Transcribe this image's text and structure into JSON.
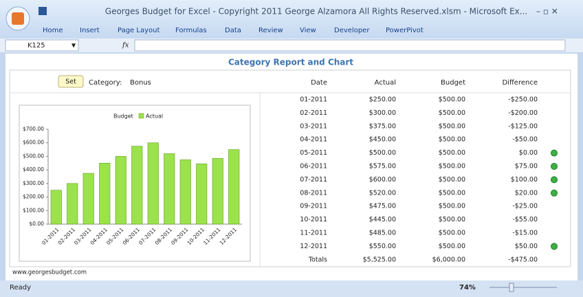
{
  "window": {
    "title": "Georges Budget for Excel - Copyright 2011 George Alzamora All Rights Reserved.xlsm - Microsoft Ex..."
  },
  "ribbon": {
    "tabs": [
      "Home",
      "Insert",
      "Page Layout",
      "Formulas",
      "Data",
      "Review",
      "View",
      "Developer",
      "PowerPivot"
    ]
  },
  "formula_bar": {
    "name_box": "K125",
    "fx": "fx"
  },
  "report": {
    "title": "Category Report and Chart",
    "button": "Set",
    "category_label": "Category:",
    "category": "Bonus",
    "columns": [
      "Date",
      "Actual",
      "Budget",
      "Difference"
    ],
    "rows": [
      {
        "date": "01-2011",
        "actual": "$250.00",
        "budget": "$500.00",
        "difference": "-$250.00",
        "indicator": false
      },
      {
        "date": "02-2011",
        "actual": "$300.00",
        "budget": "$500.00",
        "difference": "-$200.00",
        "indicator": false
      },
      {
        "date": "03-2011",
        "actual": "$375.00",
        "budget": "$500.00",
        "difference": "-$125.00",
        "indicator": false
      },
      {
        "date": "04-2011",
        "actual": "$450.00",
        "budget": "$500.00",
        "difference": "-$50.00",
        "indicator": false
      },
      {
        "date": "05-2011",
        "actual": "$500.00",
        "budget": "$500.00",
        "difference": "$0.00",
        "indicator": true
      },
      {
        "date": "06-2011",
        "actual": "$575.00",
        "budget": "$500.00",
        "difference": "$75.00",
        "indicator": true
      },
      {
        "date": "07-2011",
        "actual": "$600.00",
        "budget": "$500.00",
        "difference": "$100.00",
        "indicator": true
      },
      {
        "date": "08-2011",
        "actual": "$520.00",
        "budget": "$500.00",
        "difference": "$20.00",
        "indicator": true
      },
      {
        "date": "09-2011",
        "actual": "$475.00",
        "budget": "$500.00",
        "difference": "-$25.00",
        "indicator": false
      },
      {
        "date": "10-2011",
        "actual": "$445.00",
        "budget": "$500.00",
        "difference": "-$55.00",
        "indicator": false
      },
      {
        "date": "11-2011",
        "actual": "$485.00",
        "budget": "$500.00",
        "difference": "-$15.00",
        "indicator": false
      },
      {
        "date": "12-2011",
        "actual": "$550.00",
        "budget": "$500.00",
        "difference": "$50.00",
        "indicator": true
      }
    ],
    "totals": {
      "label": "Totals",
      "actual": "$5,525.00",
      "budget": "$6,000.00",
      "difference": "-$475.00"
    },
    "footer": "www.georgesbudget.com"
  },
  "chart_data": {
    "type": "bar",
    "legend_first_entry": "Budget",
    "categories": [
      "01-2011",
      "02-2011",
      "03-2011",
      "04-2011",
      "05-2011",
      "06-2011",
      "07-2011",
      "08-2011",
      "09-2011",
      "10-2011",
      "11-2011",
      "12-2011"
    ],
    "series": [
      {
        "name": "Actual",
        "color": "#9be24c",
        "values": [
          250,
          300,
          375,
          450,
          500,
          575,
          600,
          520,
          475,
          445,
          485,
          550
        ]
      }
    ],
    "ylim": [
      0,
      700
    ],
    "yticks": [
      {
        "value": 0,
        "label": "$0.00"
      },
      {
        "value": 100,
        "label": "$100.00"
      },
      {
        "value": 200,
        "label": "$200.00"
      },
      {
        "value": 300,
        "label": "$300.00"
      },
      {
        "value": 400,
        "label": "$400.00"
      },
      {
        "value": 500,
        "label": "$500.00"
      },
      {
        "value": 600,
        "label": "$600.00"
      },
      {
        "value": 700,
        "label": "$700.00"
      }
    ]
  },
  "status_bar": {
    "state": "Ready",
    "zoom": "74%"
  }
}
